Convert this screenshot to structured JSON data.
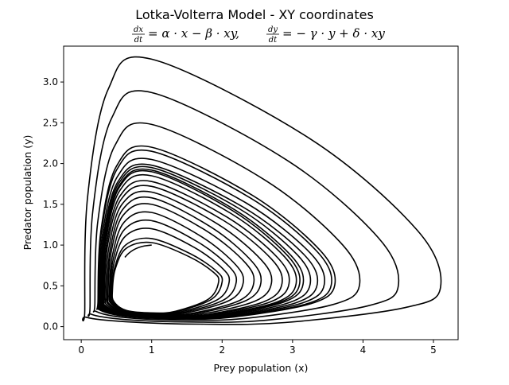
{
  "chart_data": {
    "type": "line",
    "title": "Lotka-Volterra Model - XY coordinates",
    "subtitle": {
      "eq1": {
        "num": "dx",
        "den": "dt",
        "rhs": "= α · x − β · xy,"
      },
      "eq2": {
        "num": "dy",
        "den": "dt",
        "rhs": "= − γ · y + δ · xy"
      }
    },
    "xlabel": "Prey population (x)",
    "ylabel": "Predator population (y)",
    "xlim": [
      -0.25,
      5.35
    ],
    "ylim": [
      -0.16,
      3.44
    ],
    "xticks": [
      0,
      1,
      2,
      3,
      4,
      5
    ],
    "yticks": [
      0.0,
      0.5,
      1.0,
      1.5,
      2.0,
      2.5,
      3.0
    ],
    "xtick_labels": [
      "0",
      "1",
      "2",
      "3",
      "4",
      "5"
    ],
    "ytick_labels": [
      "0.0",
      "0.5",
      "1.0",
      "1.5",
      "2.0",
      "2.5",
      "3.0"
    ],
    "grid": false,
    "legend": "none",
    "line_color": "#000000",
    "start_point": [
      1.0,
      1.0
    ],
    "loops": [
      {
        "x_max": 1.95,
        "y_max": 1.03
      },
      {
        "x_max": 2.0,
        "y_max": 1.08
      },
      {
        "x_max": 2.1,
        "y_max": 1.2
      },
      {
        "x_max": 2.2,
        "y_max": 1.3
      },
      {
        "x_max": 2.3,
        "y_max": 1.4
      },
      {
        "x_max": 2.45,
        "y_max": 1.5
      },
      {
        "x_max": 2.55,
        "y_max": 1.58
      },
      {
        "x_max": 2.7,
        "y_max": 1.65
      },
      {
        "x_max": 2.85,
        "y_max": 1.72
      },
      {
        "x_max": 2.95,
        "y_max": 1.78
      },
      {
        "x_max": 3.05,
        "y_max": 1.85
      },
      {
        "x_max": 3.1,
        "y_max": 1.9
      },
      {
        "x_max": 3.15,
        "y_max": 1.92
      },
      {
        "x_max": 3.25,
        "y_max": 1.95
      },
      {
        "x_max": 3.35,
        "y_max": 1.98
      },
      {
        "x_max": 3.45,
        "y_max": 2.05
      },
      {
        "x_max": 3.55,
        "y_max": 2.15
      },
      {
        "x_max": 3.6,
        "y_max": 2.2
      },
      {
        "x_max": 3.95,
        "y_max": 2.48
      },
      {
        "x_max": 4.5,
        "y_max": 2.87
      },
      {
        "x_max": 5.1,
        "y_max": 3.28
      }
    ]
  }
}
